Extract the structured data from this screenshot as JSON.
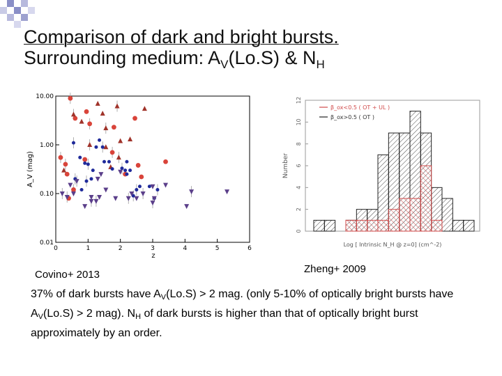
{
  "slide": {
    "title_line1": "Comparison of dark and bright bursts.",
    "title_line2_prefix": "Surrounding medium: A",
    "title_line2_sub1": "V",
    "title_line2_mid": "(Lo.S) & N",
    "title_line2_sub2": "H"
  },
  "left_figure": {
    "caption": "Covino+ 2013",
    "ylabel": "A_V (mag)",
    "xlabel": "z",
    "y_tick_labels": [
      "10.00",
      "1.00",
      "0.10",
      "0.01"
    ],
    "x_tick_labels": [
      "0",
      "1",
      "2",
      "3",
      "4",
      "5",
      "6"
    ]
  },
  "right_figure": {
    "caption": "Zheng+ 2009",
    "ylabel": "Number",
    "xlabel": "Log [ Intrinsic N_H @ z=0] (cm^-2)",
    "y_tick_labels": [
      "0",
      "2",
      "4",
      "6",
      "8",
      "10",
      "12"
    ],
    "legend": [
      "β_ox<0.5 ( OT + UL )",
      "β_ox>0.5 ( OT )"
    ]
  },
  "body": {
    "p1": "37% of dark bursts have A",
    "s1": "V",
    "p2": "(Lo.S) > 2 mag. (only 5-10% of optically bright bursts have A",
    "s2": "V",
    "p3": "(Lo.S) > 2 mag). N",
    "s3": "H",
    "p4": " of dark bursts is higher than that of optically bright burst approximately by an order."
  },
  "colors": {
    "red_circle": "#d9443a",
    "red_triangle": "#a0332a",
    "blue_circle": "#1f2a9a",
    "purple_triangle": "#5b3f8a",
    "hist_red": "#d04a4a"
  },
  "chart_data": [
    {
      "type": "scatter",
      "title": "",
      "xlabel": "z",
      "ylabel": "A_V (mag)",
      "xlim": [
        0,
        6
      ],
      "ylim": [
        0.01,
        10
      ],
      "yscale": "log",
      "series": [
        {
          "marker": "red-circle",
          "points": [
            [
              0.45,
              9.0
            ],
            [
              0.6,
              3.5
            ],
            [
              0.95,
              4.8
            ],
            [
              1.05,
              2.7
            ],
            [
              1.8,
              2.3
            ],
            [
              2.45,
              3.5
            ],
            [
              1.75,
              0.7
            ],
            [
              2.55,
              0.38
            ],
            [
              3.4,
              0.45
            ],
            [
              0.15,
              0.55
            ],
            [
              2.15,
              0.25
            ],
            [
              2.65,
              0.22
            ],
            [
              0.3,
              0.4
            ],
            [
              0.9,
              0.5
            ],
            [
              0.35,
              0.25
            ],
            [
              0.55,
              0.12
            ],
            [
              0.4,
              0.08
            ]
          ]
        },
        {
          "marker": "red-triangle",
          "points": [
            [
              0.55,
              4.2
            ],
            [
              1.3,
              7.0
            ],
            [
              1.45,
              4.4
            ],
            [
              1.9,
              6.2
            ],
            [
              2.75,
              5.5
            ],
            [
              0.8,
              3.0
            ],
            [
              1.55,
              2.2
            ],
            [
              2.0,
              1.2
            ],
            [
              2.3,
              1.3
            ],
            [
              1.95,
              0.55
            ],
            [
              1.7,
              0.35
            ],
            [
              0.25,
              0.3
            ],
            [
              1.05,
              1.0
            ],
            [
              1.55,
              0.9
            ]
          ]
        },
        {
          "marker": "blue-circle",
          "points": [
            [
              0.55,
              1.1
            ],
            [
              1.35,
              1.25
            ],
            [
              1.25,
              0.9
            ],
            [
              1.45,
              0.9
            ],
            [
              1.65,
              0.45
            ],
            [
              1.75,
              0.32
            ],
            [
              2.05,
              0.33
            ],
            [
              2.15,
              0.3
            ],
            [
              2.2,
              0.25
            ],
            [
              2.5,
              0.12
            ],
            [
              2.9,
              0.14
            ],
            [
              3.05,
              0.08
            ],
            [
              3.15,
              0.12
            ],
            [
              0.9,
              0.42
            ],
            [
              0.75,
              0.55
            ],
            [
              1.0,
              0.4
            ],
            [
              1.15,
              0.3
            ],
            [
              1.5,
              0.45
            ],
            [
              0.6,
              0.2
            ],
            [
              0.8,
              0.12
            ],
            [
              2.3,
              0.3
            ],
            [
              2.4,
              0.09
            ],
            [
              2.6,
              0.14
            ],
            [
              2.2,
              0.45
            ],
            [
              0.95,
              0.18
            ],
            [
              1.1,
              0.2
            ]
          ]
        },
        {
          "marker": "purple-triangle",
          "points": [
            [
              0.35,
              0.085
            ],
            [
              0.55,
              0.1
            ],
            [
              1.1,
              0.085
            ],
            [
              1.25,
              0.07
            ],
            [
              1.35,
              0.085
            ],
            [
              1.85,
              0.08
            ],
            [
              2.25,
              0.08
            ],
            [
              2.35,
              0.1
            ],
            [
              2.5,
              0.08
            ],
            [
              3.0,
              0.065
            ],
            [
              3.05,
              0.08
            ],
            [
              0.45,
              0.15
            ],
            [
              0.65,
              0.18
            ],
            [
              1.4,
              0.25
            ],
            [
              1.55,
              0.12
            ],
            [
              2.7,
              0.1
            ],
            [
              3.4,
              0.15
            ],
            [
              4.05,
              0.055
            ],
            [
              4.2,
              0.11
            ],
            [
              5.3,
              0.11
            ],
            [
              3.0,
              0.14
            ],
            [
              1.1,
              0.07
            ],
            [
              0.9,
              0.055
            ],
            [
              1.3,
              0.2
            ],
            [
              0.2,
              0.1
            ],
            [
              2.0,
              0.28
            ]
          ]
        }
      ]
    },
    {
      "type": "bar",
      "title": "",
      "xlabel": "Log [ Intrinsic N_H @ z=0] (cm^-2)",
      "ylabel": "Number",
      "ylim": [
        0,
        12
      ],
      "bin_edges": [
        20.0,
        20.2,
        20.4,
        20.6,
        20.8,
        21.0,
        21.2,
        21.4,
        21.6,
        21.8,
        22.0,
        22.2,
        22.4,
        22.6,
        22.8,
        23.0
      ],
      "series": [
        {
          "name": "β_ox<0.5 ( OT + UL )",
          "values": [
            0,
            0,
            0,
            1,
            1,
            1,
            1,
            2,
            3,
            3,
            6,
            1,
            0,
            0,
            0
          ]
        },
        {
          "name": "β_ox>0.5 ( OT )",
          "values": [
            1,
            1,
            0,
            1,
            2,
            2,
            7,
            9,
            9,
            11,
            9,
            4,
            3,
            1,
            1
          ]
        }
      ]
    }
  ]
}
